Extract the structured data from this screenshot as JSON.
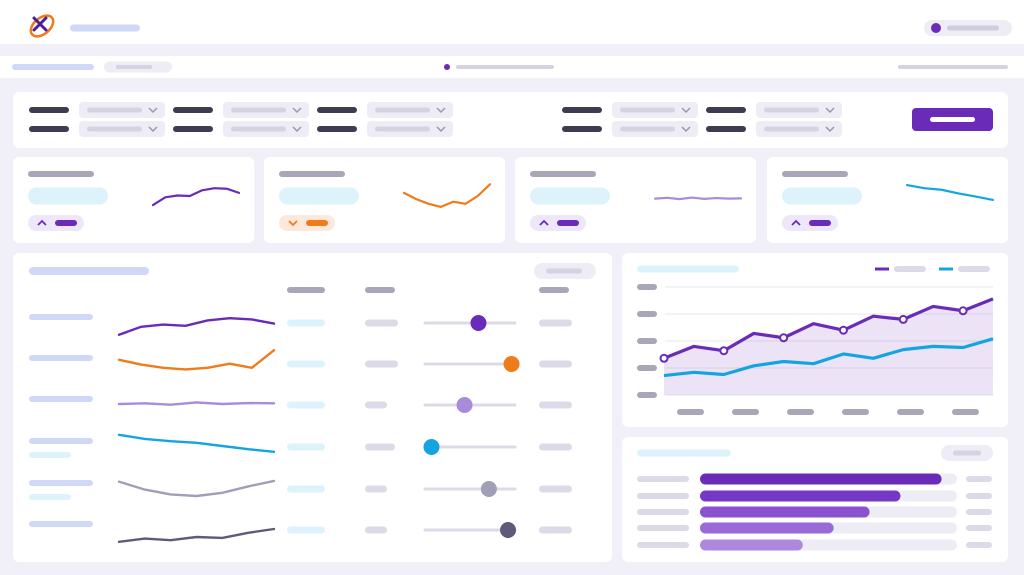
{
  "kpi_cards": [
    {
      "color": "#6a2bb8",
      "trend": [
        15,
        45,
        52,
        50,
        72,
        80,
        78,
        62
      ]
    },
    {
      "color": "#f07b1a",
      "trend": [
        62,
        38,
        20,
        8,
        28,
        20,
        50,
        95
      ]
    },
    {
      "color": "#a98bdc",
      "trend": [
        40,
        43,
        38,
        44,
        39,
        42,
        40,
        41
      ]
    },
    {
      "color": "#14a5e0",
      "trend": [
        92,
        80,
        74,
        60,
        48,
        35
      ]
    }
  ],
  "table": {
    "rows": [
      {
        "color": "#6a2bb8",
        "trend": [
          10,
          35,
          42,
          38,
          55,
          62,
          58,
          45
        ],
        "slider": 58
      },
      {
        "color": "#f07b1a",
        "trend": [
          60,
          45,
          35,
          30,
          35,
          48,
          35,
          90
        ],
        "slider": 96
      },
      {
        "color": "#a98bdc",
        "trend": [
          50,
          52,
          48,
          55,
          50,
          53,
          52
        ],
        "slider": 42
      },
      {
        "color": "#14a5e0",
        "trend": [
          85,
          72,
          65,
          60,
          50,
          40,
          32
        ],
        "slider": 4
      },
      {
        "color": "#a19fb8",
        "trend": [
          70,
          45,
          30,
          25,
          35,
          55,
          72
        ],
        "slider": 70
      },
      {
        "color": "#5e5a7a",
        "trend": [
          10,
          20,
          15,
          25,
          22,
          38,
          50
        ],
        "slider": 92
      }
    ]
  },
  "line_chart": {
    "ylim": [
      0,
      100
    ],
    "series": [
      {
        "color": "#6a2bb8",
        "values": [
          34,
          45,
          41,
          57,
          53,
          66,
          60,
          73,
          70,
          82,
          78,
          89
        ]
      },
      {
        "color": "#14a5e0",
        "values": [
          18,
          21,
          19,
          27,
          31,
          29,
          38,
          34,
          42,
          45,
          44,
          52
        ]
      }
    ]
  },
  "bar_chart": {
    "xlim": [
      0,
      100
    ],
    "values": [
      94,
      78,
      66,
      52,
      40
    ],
    "colors": [
      "#6a2bb8",
      "#7538c4",
      "#8a52cf",
      "#9a6ad6",
      "#ad88de"
    ]
  }
}
